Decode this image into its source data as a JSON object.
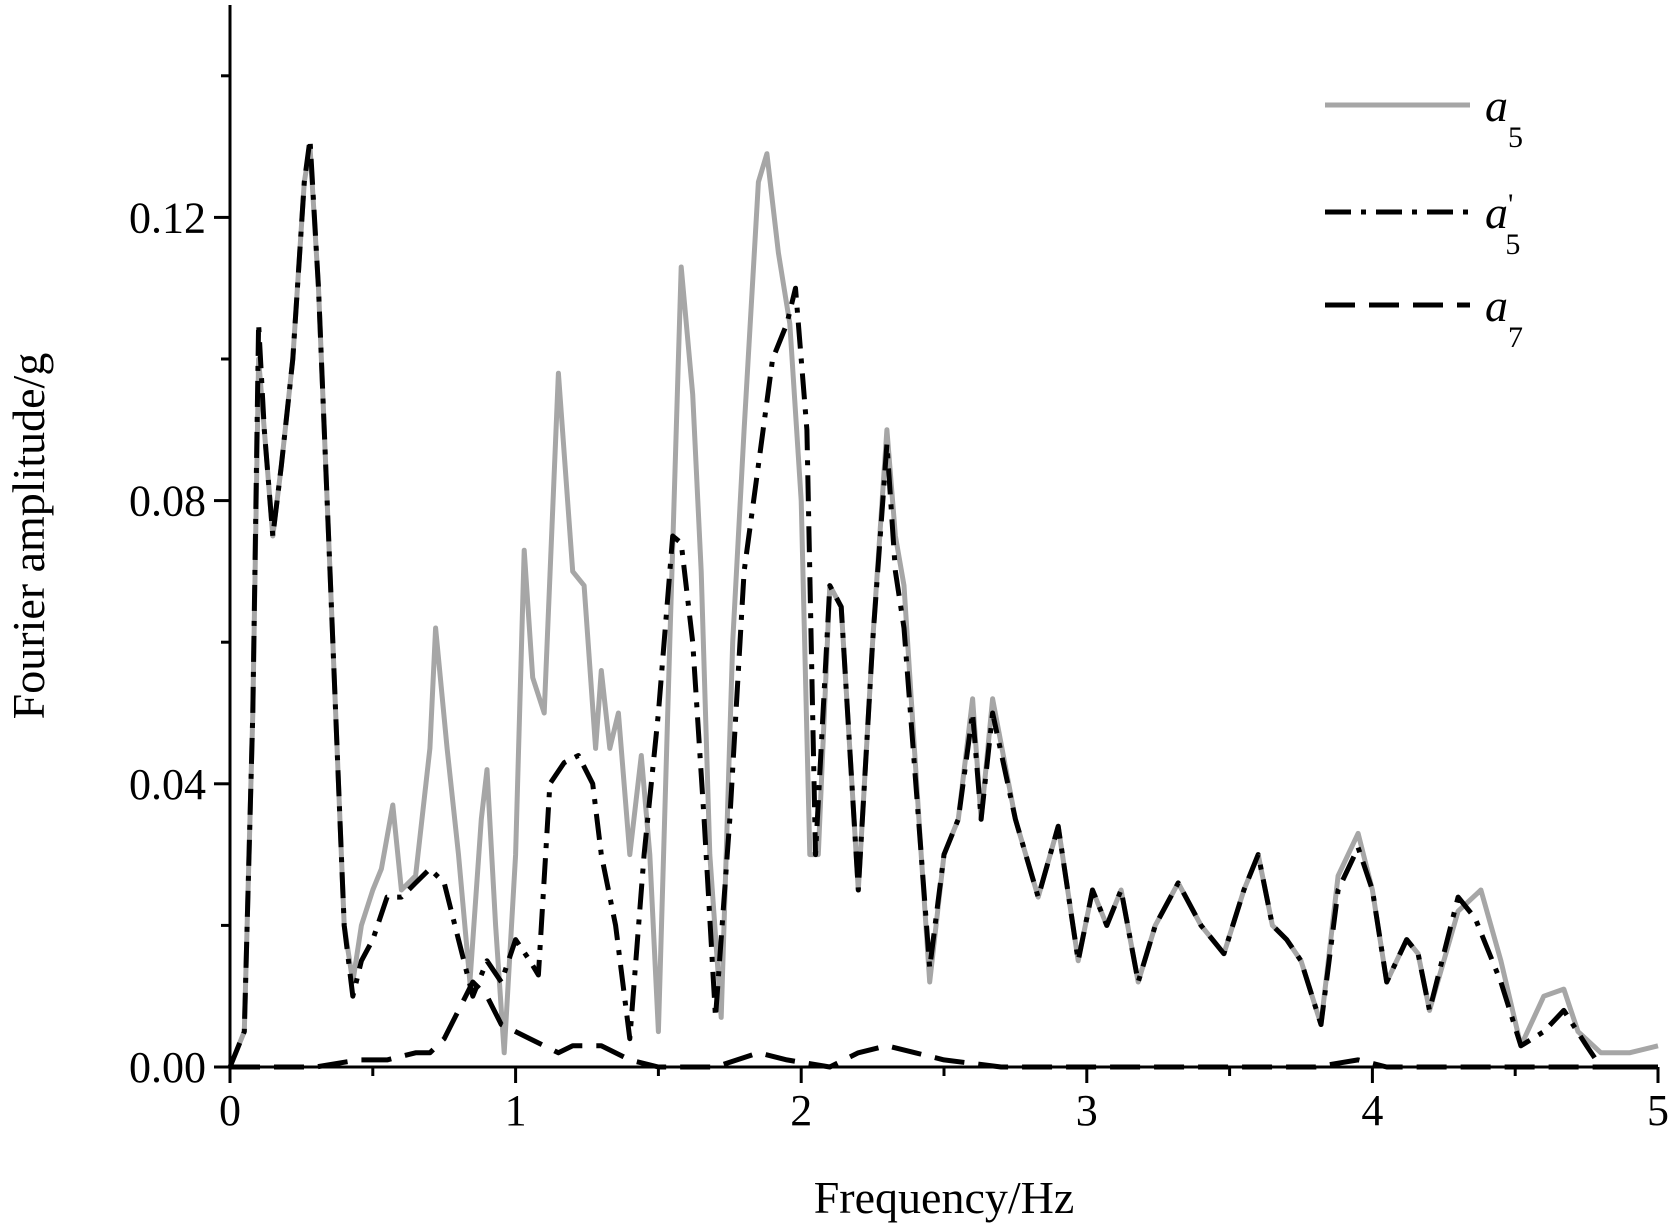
{
  "chart_data": {
    "type": "line",
    "title": "",
    "xlabel": "Frequency/Hz",
    "ylabel": "Fourier amplitude/g",
    "xlim": [
      0,
      5
    ],
    "ylim": [
      0,
      0.15
    ],
    "x_ticks": [
      "0",
      "1",
      "2",
      "3",
      "4",
      "5"
    ],
    "y_ticks": [
      "0.00",
      "0.04",
      "0.08",
      "0.12"
    ],
    "grid": false,
    "legend_position": "top-right",
    "series": [
      {
        "name": "a5",
        "label_main": "a",
        "label_sub": "5",
        "label_prime": "",
        "style": "solid",
        "color": "#a6a6a6",
        "points": [
          [
            0,
            0
          ],
          [
            0.05,
            0.005
          ],
          [
            0.08,
            0.05
          ],
          [
            0.1,
            0.1
          ],
          [
            0.12,
            0.09
          ],
          [
            0.15,
            0.075
          ],
          [
            0.18,
            0.085
          ],
          [
            0.22,
            0.1
          ],
          [
            0.26,
            0.125
          ],
          [
            0.28,
            0.13
          ],
          [
            0.31,
            0.11
          ],
          [
            0.35,
            0.07
          ],
          [
            0.38,
            0.04
          ],
          [
            0.4,
            0.02
          ],
          [
            0.43,
            0.012
          ],
          [
            0.46,
            0.02
          ],
          [
            0.5,
            0.025
          ],
          [
            0.53,
            0.028
          ],
          [
            0.57,
            0.037
          ],
          [
            0.6,
            0.025
          ],
          [
            0.65,
            0.027
          ],
          [
            0.7,
            0.045
          ],
          [
            0.72,
            0.062
          ],
          [
            0.76,
            0.045
          ],
          [
            0.8,
            0.03
          ],
          [
            0.84,
            0.012
          ],
          [
            0.88,
            0.035
          ],
          [
            0.9,
            0.042
          ],
          [
            0.93,
            0.02
          ],
          [
            0.96,
            0.002
          ],
          [
            1.0,
            0.03
          ],
          [
            1.03,
            0.073
          ],
          [
            1.06,
            0.055
          ],
          [
            1.1,
            0.05
          ],
          [
            1.15,
            0.098
          ],
          [
            1.2,
            0.07
          ],
          [
            1.24,
            0.068
          ],
          [
            1.28,
            0.045
          ],
          [
            1.3,
            0.056
          ],
          [
            1.33,
            0.045
          ],
          [
            1.36,
            0.05
          ],
          [
            1.4,
            0.03
          ],
          [
            1.44,
            0.044
          ],
          [
            1.47,
            0.03
          ],
          [
            1.5,
            0.005
          ],
          [
            1.54,
            0.06
          ],
          [
            1.58,
            0.113
          ],
          [
            1.62,
            0.095
          ],
          [
            1.65,
            0.07
          ],
          [
            1.68,
            0.03
          ],
          [
            1.72,
            0.007
          ],
          [
            1.76,
            0.06
          ],
          [
            1.8,
            0.09
          ],
          [
            1.85,
            0.125
          ],
          [
            1.88,
            0.129
          ],
          [
            1.92,
            0.115
          ],
          [
            1.96,
            0.105
          ],
          [
            2.0,
            0.08
          ],
          [
            2.03,
            0.03
          ],
          [
            2.06,
            0.03
          ],
          [
            2.1,
            0.068
          ],
          [
            2.14,
            0.065
          ],
          [
            2.2,
            0.025
          ],
          [
            2.25,
            0.06
          ],
          [
            2.3,
            0.09
          ],
          [
            2.33,
            0.075
          ],
          [
            2.36,
            0.068
          ],
          [
            2.42,
            0.03
          ],
          [
            2.45,
            0.012
          ],
          [
            2.5,
            0.03
          ],
          [
            2.55,
            0.035
          ],
          [
            2.6,
            0.052
          ],
          [
            2.63,
            0.035
          ],
          [
            2.67,
            0.052
          ],
          [
            2.75,
            0.035
          ],
          [
            2.83,
            0.024
          ],
          [
            2.9,
            0.034
          ],
          [
            2.97,
            0.015
          ],
          [
            3.02,
            0.025
          ],
          [
            3.07,
            0.02
          ],
          [
            3.12,
            0.025
          ],
          [
            3.18,
            0.012
          ],
          [
            3.24,
            0.02
          ],
          [
            3.32,
            0.026
          ],
          [
            3.4,
            0.02
          ],
          [
            3.48,
            0.016
          ],
          [
            3.55,
            0.025
          ],
          [
            3.6,
            0.03
          ],
          [
            3.65,
            0.02
          ],
          [
            3.7,
            0.018
          ],
          [
            3.75,
            0.015
          ],
          [
            3.82,
            0.006
          ],
          [
            3.88,
            0.027
          ],
          [
            3.95,
            0.033
          ],
          [
            4.0,
            0.025
          ],
          [
            4.05,
            0.012
          ],
          [
            4.12,
            0.018
          ],
          [
            4.16,
            0.016
          ],
          [
            4.2,
            0.008
          ],
          [
            4.3,
            0.022
          ],
          [
            4.38,
            0.025
          ],
          [
            4.45,
            0.015
          ],
          [
            4.52,
            0.003
          ],
          [
            4.6,
            0.01
          ],
          [
            4.67,
            0.011
          ],
          [
            4.72,
            0.005
          ],
          [
            4.8,
            0.002
          ],
          [
            4.9,
            0.002
          ],
          [
            5.0,
            0.003
          ]
        ]
      },
      {
        "name": "a'5",
        "label_main": "a",
        "label_sub": "5",
        "label_prime": "'",
        "style": "dashdot",
        "color": "#000000",
        "points": [
          [
            0,
            0
          ],
          [
            0.05,
            0.005
          ],
          [
            0.08,
            0.05
          ],
          [
            0.1,
            0.105
          ],
          [
            0.12,
            0.09
          ],
          [
            0.15,
            0.075
          ],
          [
            0.18,
            0.085
          ],
          [
            0.22,
            0.1
          ],
          [
            0.26,
            0.125
          ],
          [
            0.28,
            0.131
          ],
          [
            0.31,
            0.11
          ],
          [
            0.35,
            0.07
          ],
          [
            0.38,
            0.04
          ],
          [
            0.4,
            0.02
          ],
          [
            0.43,
            0.01
          ],
          [
            0.46,
            0.015
          ],
          [
            0.5,
            0.018
          ],
          [
            0.55,
            0.024
          ],
          [
            0.6,
            0.024
          ],
          [
            0.65,
            0.026
          ],
          [
            0.7,
            0.028
          ],
          [
            0.75,
            0.026
          ],
          [
            0.8,
            0.018
          ],
          [
            0.85,
            0.01
          ],
          [
            0.9,
            0.015
          ],
          [
            0.95,
            0.012
          ],
          [
            1.0,
            0.018
          ],
          [
            1.05,
            0.015
          ],
          [
            1.08,
            0.013
          ],
          [
            1.12,
            0.04
          ],
          [
            1.17,
            0.043
          ],
          [
            1.22,
            0.044
          ],
          [
            1.27,
            0.04
          ],
          [
            1.3,
            0.03
          ],
          [
            1.35,
            0.02
          ],
          [
            1.4,
            0.004
          ],
          [
            1.45,
            0.03
          ],
          [
            1.5,
            0.05
          ],
          [
            1.55,
            0.075
          ],
          [
            1.58,
            0.074
          ],
          [
            1.62,
            0.06
          ],
          [
            1.66,
            0.035
          ],
          [
            1.7,
            0.007
          ],
          [
            1.75,
            0.035
          ],
          [
            1.8,
            0.07
          ],
          [
            1.85,
            0.085
          ],
          [
            1.9,
            0.1
          ],
          [
            1.95,
            0.105
          ],
          [
            1.98,
            0.11
          ],
          [
            2.02,
            0.09
          ],
          [
            2.05,
            0.03
          ],
          [
            2.1,
            0.068
          ],
          [
            2.14,
            0.065
          ],
          [
            2.2,
            0.025
          ],
          [
            2.25,
            0.06
          ],
          [
            2.3,
            0.088
          ],
          [
            2.33,
            0.07
          ],
          [
            2.36,
            0.062
          ],
          [
            2.42,
            0.03
          ],
          [
            2.45,
            0.014
          ],
          [
            2.5,
            0.03
          ],
          [
            2.55,
            0.035
          ],
          [
            2.6,
            0.05
          ],
          [
            2.63,
            0.035
          ],
          [
            2.67,
            0.05
          ],
          [
            2.75,
            0.035
          ],
          [
            2.83,
            0.024
          ],
          [
            2.9,
            0.034
          ],
          [
            2.97,
            0.015
          ],
          [
            3.02,
            0.025
          ],
          [
            3.07,
            0.02
          ],
          [
            3.12,
            0.025
          ],
          [
            3.18,
            0.012
          ],
          [
            3.24,
            0.02
          ],
          [
            3.32,
            0.026
          ],
          [
            3.4,
            0.02
          ],
          [
            3.48,
            0.016
          ],
          [
            3.55,
            0.025
          ],
          [
            3.6,
            0.03
          ],
          [
            3.65,
            0.02
          ],
          [
            3.7,
            0.018
          ],
          [
            3.75,
            0.015
          ],
          [
            3.82,
            0.006
          ],
          [
            3.88,
            0.025
          ],
          [
            3.95,
            0.031
          ],
          [
            4.0,
            0.025
          ],
          [
            4.05,
            0.012
          ],
          [
            4.12,
            0.018
          ],
          [
            4.16,
            0.016
          ],
          [
            4.2,
            0.008
          ],
          [
            4.3,
            0.024
          ],
          [
            4.36,
            0.021
          ],
          [
            4.45,
            0.012
          ],
          [
            4.52,
            0.003
          ],
          [
            4.6,
            0.005
          ],
          [
            4.67,
            0.008
          ],
          [
            4.75,
            0.003
          ],
          [
            4.8,
            0.0
          ],
          [
            5.0,
            0.0
          ]
        ]
      },
      {
        "name": "a7",
        "label_main": "a",
        "label_sub": "7",
        "label_prime": "",
        "style": "dashed",
        "color": "#000000",
        "points": [
          [
            0,
            0
          ],
          [
            0.3,
            0.0
          ],
          [
            0.45,
            0.001
          ],
          [
            0.55,
            0.001
          ],
          [
            0.65,
            0.002
          ],
          [
            0.7,
            0.002
          ],
          [
            0.75,
            0.004
          ],
          [
            0.8,
            0.008
          ],
          [
            0.85,
            0.012
          ],
          [
            0.9,
            0.01
          ],
          [
            0.95,
            0.006
          ],
          [
            1.0,
            0.005
          ],
          [
            1.05,
            0.004
          ],
          [
            1.1,
            0.003
          ],
          [
            1.15,
            0.002
          ],
          [
            1.2,
            0.003
          ],
          [
            1.3,
            0.003
          ],
          [
            1.4,
            0.001
          ],
          [
            1.5,
            0.0
          ],
          [
            1.7,
            0.0
          ],
          [
            1.85,
            0.002
          ],
          [
            1.95,
            0.001
          ],
          [
            2.1,
            0.0
          ],
          [
            2.2,
            0.002
          ],
          [
            2.3,
            0.003
          ],
          [
            2.4,
            0.002
          ],
          [
            2.5,
            0.001
          ],
          [
            2.7,
            0.0
          ],
          [
            3.5,
            0.0
          ],
          [
            3.8,
            0.0
          ],
          [
            3.95,
            0.001
          ],
          [
            4.05,
            0.0
          ],
          [
            5.0,
            0.0
          ]
        ]
      }
    ]
  }
}
